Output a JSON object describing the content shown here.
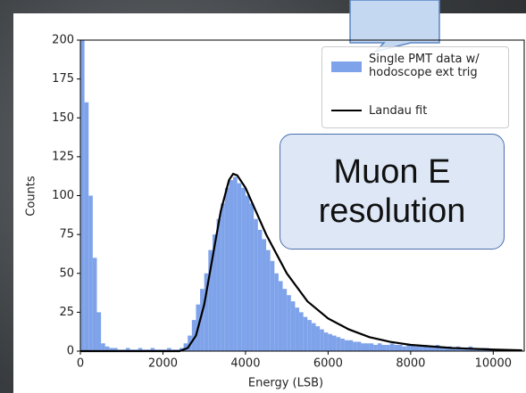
{
  "chart_data": {
    "type": "histogram",
    "xlabel": "Energy (LSB)",
    "ylabel": "Counts",
    "xlim": [
      0,
      10750
    ],
    "ylim": [
      0,
      200
    ],
    "xticks": [
      0,
      2000,
      4000,
      6000,
      8000,
      10000
    ],
    "yticks": [
      0,
      25,
      50,
      75,
      100,
      125,
      150,
      175,
      200
    ],
    "legend": "upper right",
    "annotations": [
      {
        "text": "Muon E\nresolution"
      }
    ],
    "series": [
      {
        "name": "Single PMT data w/\nhodoscope ext trig",
        "type": "histogram",
        "color": "#7fa3ea",
        "bins": [
          0,
          100,
          200,
          300,
          400,
          500,
          600,
          700,
          800,
          900,
          1000,
          1100,
          1200,
          1300,
          1400,
          1500,
          1600,
          1700,
          1800,
          1900,
          2000,
          2100,
          2200,
          2300,
          2400,
          2500,
          2600,
          2700,
          2800,
          2900,
          3000,
          3100,
          3200,
          3300,
          3400,
          3500,
          3600,
          3700,
          3800,
          3900,
          4000,
          4100,
          4200,
          4300,
          4400,
          4500,
          4600,
          4700,
          4800,
          4900,
          5000,
          5100,
          5200,
          5300,
          5400,
          5500,
          5600,
          5700,
          5800,
          5900,
          6000,
          6100,
          6200,
          6300,
          6400,
          6500,
          6600,
          6700,
          6800,
          6900,
          7000,
          7100,
          7200,
          7300,
          7400,
          7500,
          7600,
          7700,
          7800,
          7900,
          8000,
          8100,
          8200,
          8300,
          8400,
          8500,
          8600,
          8700,
          8800,
          8900,
          9000,
          9100,
          9200,
          9300,
          9400,
          9500,
          9600,
          9700,
          9800,
          9900,
          10000,
          10100,
          10200,
          10300,
          10400,
          10500,
          10600,
          10700
        ],
        "values": [
          200,
          160,
          100,
          60,
          25,
          5,
          3,
          2,
          2,
          1,
          1,
          2,
          1,
          1,
          2,
          1,
          1,
          2,
          1,
          1,
          1,
          2,
          1,
          1,
          2,
          5,
          10,
          20,
          30,
          40,
          50,
          65,
          75,
          85,
          95,
          105,
          110,
          112,
          108,
          105,
          100,
          95,
          85,
          78,
          72,
          65,
          58,
          50,
          45,
          40,
          36,
          32,
          28,
          25,
          22,
          20,
          18,
          16,
          14,
          12,
          11,
          10,
          9,
          8,
          7,
          7,
          6,
          6,
          5,
          5,
          5,
          4,
          5,
          4,
          4,
          5,
          4,
          4,
          3,
          4,
          4,
          3,
          3,
          4,
          3,
          3,
          4,
          3,
          2,
          3,
          2,
          3,
          2,
          2,
          3,
          2,
          1,
          2,
          2,
          1,
          1,
          0,
          0,
          0,
          0,
          0,
          0
        ]
      },
      {
        "name": "Landau fit",
        "type": "line",
        "color": "#000000",
        "x": [
          0,
          2400,
          2600,
          2800,
          3000,
          3200,
          3400,
          3600,
          3700,
          3800,
          4000,
          4200,
          4500,
          5000,
          5500,
          6000,
          6500,
          7000,
          7500,
          8000,
          9000,
          10000,
          10700
        ],
        "values": [
          0,
          0,
          2,
          10,
          30,
          60,
          90,
          110,
          114,
          113,
          105,
          93,
          75,
          50,
          32,
          21,
          14,
          9,
          6,
          4,
          2,
          1,
          0.5
        ]
      }
    ]
  }
}
